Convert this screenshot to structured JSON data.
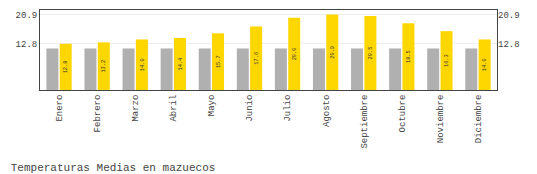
{
  "chart_data": {
    "type": "bar",
    "title": "Temperaturas Medias en mazuecos",
    "categories": [
      "Enero",
      "Febrero",
      "Marzo",
      "Abril",
      "Mayo",
      "Junio",
      "Julio",
      "Agosto",
      "Septiembre",
      "Octubre",
      "Noviembre",
      "Diciembre"
    ],
    "series": [
      {
        "color": "#B0B0B0",
        "values": [
          11.5,
          11.5,
          11.5,
          11.5,
          11.5,
          11.5,
          11.5,
          11.5,
          11.5,
          11.5,
          11.5,
          11.5
        ],
        "data_labels": false
      },
      {
        "color": "#FFD700",
        "values": [
          12.8,
          13.2,
          14.0,
          14.4,
          15.7,
          17.6,
          20.0,
          20.9,
          20.5,
          18.5,
          16.3,
          14.0
        ],
        "value_labels": [
          "12.8",
          "13.2",
          "14.0",
          "14.4",
          "15.7",
          "17.6",
          "20.0",
          "20.9",
          "20.5",
          "18.5",
          "16.3",
          "14.0"
        ],
        "data_labels": true
      }
    ],
    "ylim": [
      0,
      22.154
    ],
    "yticks": [
      12.8,
      20.9
    ],
    "y2lim": [
      0,
      22.154
    ],
    "y2ticks": [
      12.8,
      20.9
    ],
    "grid": true
  }
}
